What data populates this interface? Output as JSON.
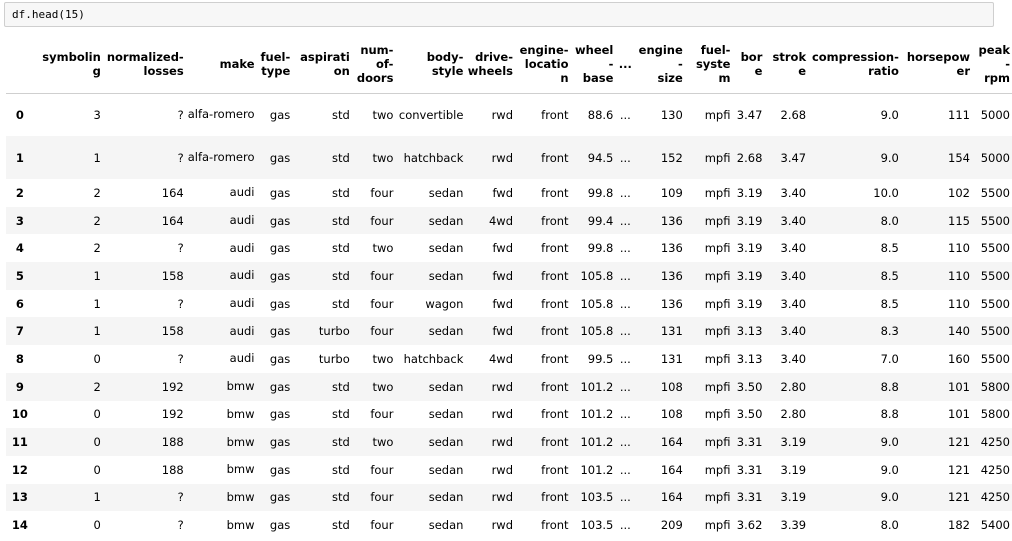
{
  "cell": {
    "code": "df.head(15)"
  },
  "table": {
    "columns": [
      [
        "symboling"
      ],
      [
        "normalized-",
        "losses"
      ],
      [
        "make"
      ],
      [
        "fuel-",
        "type"
      ],
      [
        "aspiration"
      ],
      [
        "num-",
        "of-",
        "doors"
      ],
      [
        "body-",
        "style"
      ],
      [
        "drive-",
        "wheels"
      ],
      [
        "engine-",
        "location"
      ],
      [
        "wheel-",
        "base"
      ],
      [
        "..."
      ],
      [
        "engine-",
        "size"
      ],
      [
        "fuel-",
        "system"
      ],
      [
        "bore"
      ],
      [
        "stroke"
      ],
      [
        "compression-",
        "ratio"
      ],
      [
        "horsepower"
      ],
      [
        "peak-",
        "rpm"
      ]
    ],
    "rows": [
      {
        "idx": "0",
        "cells": [
          "3",
          "?",
          "alfa-romero",
          "gas",
          "std",
          "two",
          "convertible",
          "rwd",
          "front",
          "88.6",
          "...",
          "130",
          "mpfi",
          "3.47",
          "2.68",
          "9.0",
          "111",
          "5000"
        ]
      },
      {
        "idx": "1",
        "cells": [
          "1",
          "?",
          "alfa-romero",
          "gas",
          "std",
          "two",
          "hatchback",
          "rwd",
          "front",
          "94.5",
          "...",
          "152",
          "mpfi",
          "2.68",
          "3.47",
          "9.0",
          "154",
          "5000"
        ]
      },
      {
        "idx": "2",
        "cells": [
          "2",
          "164",
          "audi",
          "gas",
          "std",
          "four",
          "sedan",
          "fwd",
          "front",
          "99.8",
          "...",
          "109",
          "mpfi",
          "3.19",
          "3.40",
          "10.0",
          "102",
          "5500"
        ]
      },
      {
        "idx": "3",
        "cells": [
          "2",
          "164",
          "audi",
          "gas",
          "std",
          "four",
          "sedan",
          "4wd",
          "front",
          "99.4",
          "...",
          "136",
          "mpfi",
          "3.19",
          "3.40",
          "8.0",
          "115",
          "5500"
        ]
      },
      {
        "idx": "4",
        "cells": [
          "2",
          "?",
          "audi",
          "gas",
          "std",
          "two",
          "sedan",
          "fwd",
          "front",
          "99.8",
          "...",
          "136",
          "mpfi",
          "3.19",
          "3.40",
          "8.5",
          "110",
          "5500"
        ]
      },
      {
        "idx": "5",
        "cells": [
          "1",
          "158",
          "audi",
          "gas",
          "std",
          "four",
          "sedan",
          "fwd",
          "front",
          "105.8",
          "...",
          "136",
          "mpfi",
          "3.19",
          "3.40",
          "8.5",
          "110",
          "5500"
        ]
      },
      {
        "idx": "6",
        "cells": [
          "1",
          "?",
          "audi",
          "gas",
          "std",
          "four",
          "wagon",
          "fwd",
          "front",
          "105.8",
          "...",
          "136",
          "mpfi",
          "3.19",
          "3.40",
          "8.5",
          "110",
          "5500"
        ]
      },
      {
        "idx": "7",
        "cells": [
          "1",
          "158",
          "audi",
          "gas",
          "turbo",
          "four",
          "sedan",
          "fwd",
          "front",
          "105.8",
          "...",
          "131",
          "mpfi",
          "3.13",
          "3.40",
          "8.3",
          "140",
          "5500"
        ]
      },
      {
        "idx": "8",
        "cells": [
          "0",
          "?",
          "audi",
          "gas",
          "turbo",
          "two",
          "hatchback",
          "4wd",
          "front",
          "99.5",
          "...",
          "131",
          "mpfi",
          "3.13",
          "3.40",
          "7.0",
          "160",
          "5500"
        ]
      },
      {
        "idx": "9",
        "cells": [
          "2",
          "192",
          "bmw",
          "gas",
          "std",
          "two",
          "sedan",
          "rwd",
          "front",
          "101.2",
          "...",
          "108",
          "mpfi",
          "3.50",
          "2.80",
          "8.8",
          "101",
          "5800"
        ]
      },
      {
        "idx": "10",
        "cells": [
          "0",
          "192",
          "bmw",
          "gas",
          "std",
          "four",
          "sedan",
          "rwd",
          "front",
          "101.2",
          "...",
          "108",
          "mpfi",
          "3.50",
          "2.80",
          "8.8",
          "101",
          "5800"
        ]
      },
      {
        "idx": "11",
        "cells": [
          "0",
          "188",
          "bmw",
          "gas",
          "std",
          "two",
          "sedan",
          "rwd",
          "front",
          "101.2",
          "...",
          "164",
          "mpfi",
          "3.31",
          "3.19",
          "9.0",
          "121",
          "4250"
        ]
      },
      {
        "idx": "12",
        "cells": [
          "0",
          "188",
          "bmw",
          "gas",
          "std",
          "four",
          "sedan",
          "rwd",
          "front",
          "101.2",
          "...",
          "164",
          "mpfi",
          "3.31",
          "3.19",
          "9.0",
          "121",
          "4250"
        ]
      },
      {
        "idx": "13",
        "cells": [
          "1",
          "?",
          "bmw",
          "gas",
          "std",
          "four",
          "sedan",
          "rwd",
          "front",
          "103.5",
          "...",
          "164",
          "mpfi",
          "3.31",
          "3.19",
          "9.0",
          "121",
          "4250"
        ]
      },
      {
        "idx": "14",
        "cells": [
          "0",
          "?",
          "bmw",
          "gas",
          "std",
          "four",
          "sedan",
          "rwd",
          "front",
          "103.5",
          "...",
          "209",
          "mpfi",
          "3.62",
          "3.39",
          "8.0",
          "182",
          "5400"
        ]
      }
    ]
  }
}
